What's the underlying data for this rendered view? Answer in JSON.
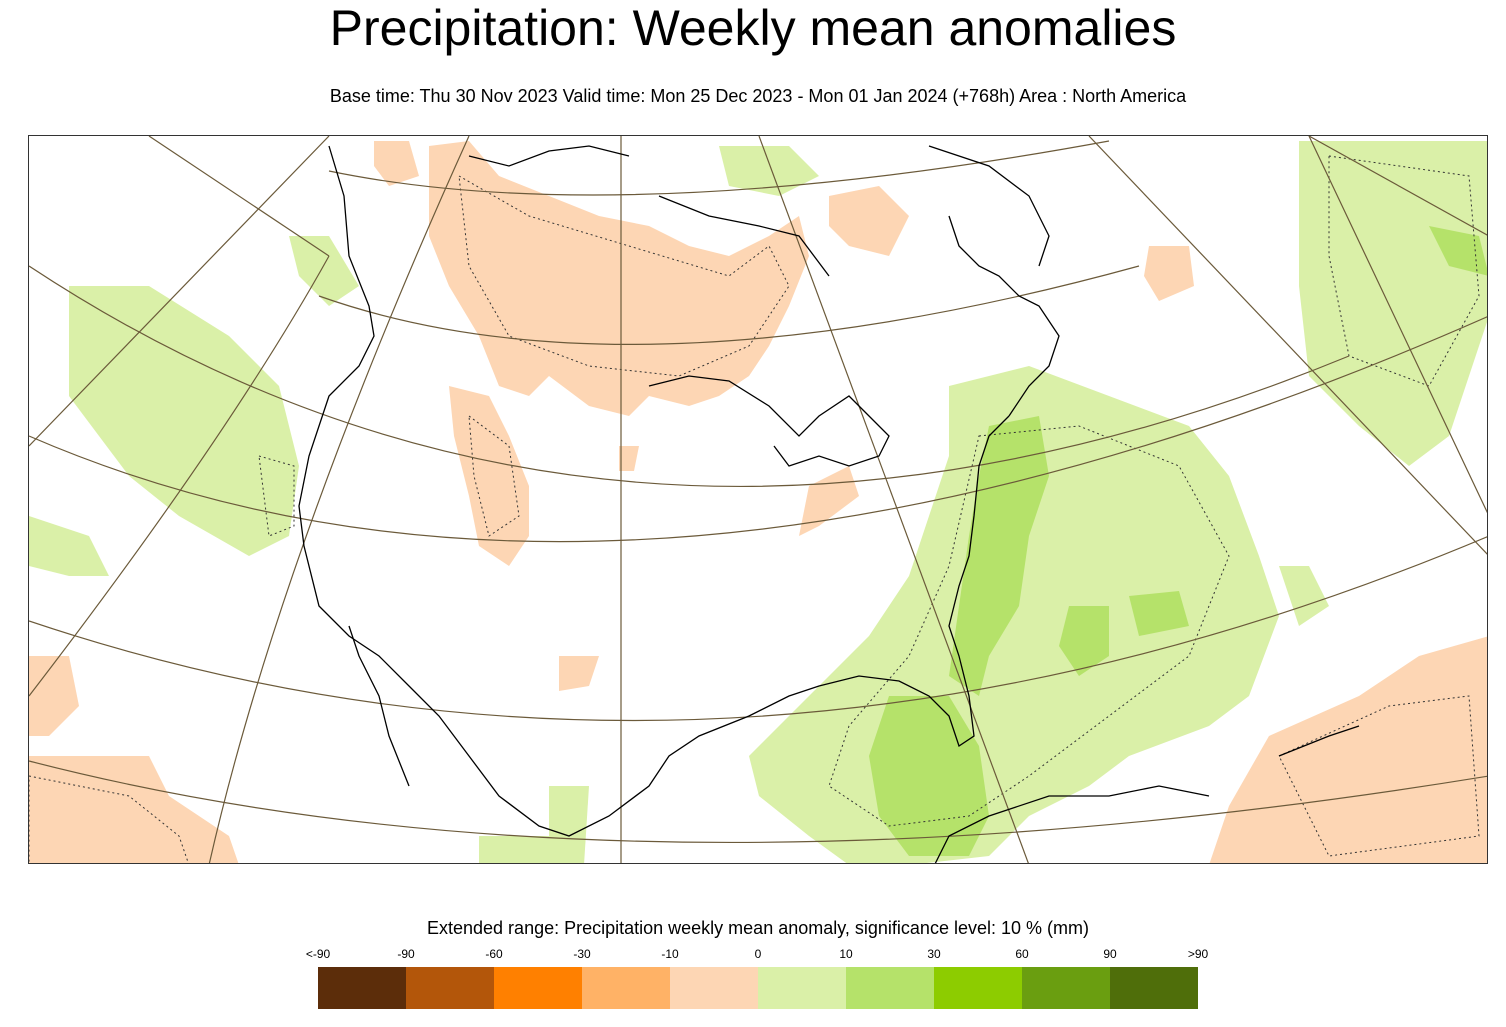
{
  "title": "Precipitation: Weekly mean anomalies",
  "subtitle": "Base time: Thu 30 Nov 2023 Valid time: Mon 25 Dec 2023 - Mon 01 Jan 2024 (+768h) Area : North America",
  "legend": {
    "title": "Extended range: Precipitation weekly mean anomaly, significance level: 10 % (mm)",
    "labels": [
      "<-90",
      "-90",
      "-60",
      "-30",
      "-10",
      "0",
      "10",
      "30",
      "60",
      "90",
      ">90"
    ],
    "colors": [
      "#5c2d0a",
      "#b3560a",
      "#ff8000",
      "#ffb266",
      "#fdd6b4",
      "#daf0a8",
      "#b5e26a",
      "#8dcc00",
      "#6a9e10",
      "#4f6e0a"
    ]
  },
  "map": {
    "region": "North America",
    "projection_lines_color": "#6b5a3a",
    "coastline_color": "#000000"
  }
}
